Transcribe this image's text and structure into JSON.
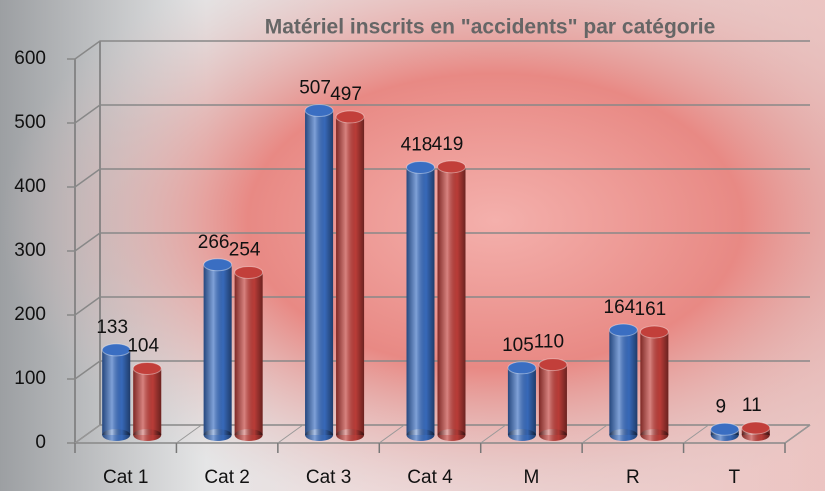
{
  "chart_data": {
    "type": "bar",
    "title": "Matériel inscrits en \"accidents\" par catégorie",
    "categories": [
      "Cat 1",
      "Cat 2",
      "Cat 3",
      "Cat 4",
      "M",
      "R",
      "T"
    ],
    "series": [
      {
        "color": "#3a6ec2",
        "values": [
          133,
          266,
          507,
          418,
          105,
          164,
          9
        ]
      },
      {
        "color": "#c23f3a",
        "values": [
          104,
          254,
          497,
          419,
          110,
          161,
          11
        ]
      }
    ],
    "ylim": [
      0,
      600
    ],
    "yticks": [
      0,
      100,
      200,
      300,
      400,
      500,
      600
    ],
    "grid": true
  }
}
